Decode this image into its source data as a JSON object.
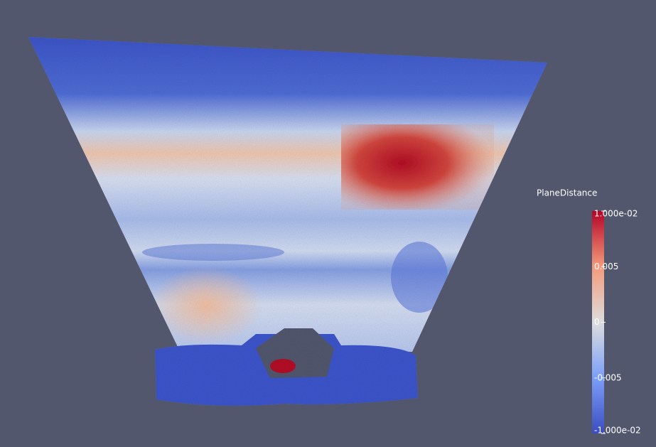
{
  "colorbar": {
    "title": "PlaneDistance",
    "range": [
      -0.01,
      0.01
    ],
    "ticks": [
      {
        "value": 0.01,
        "label": "1.000e-02"
      },
      0.005,
      0,
      -0.005,
      {
        "value": -0.01,
        "label": "-1.000e-02"
      }
    ]
  }
}
